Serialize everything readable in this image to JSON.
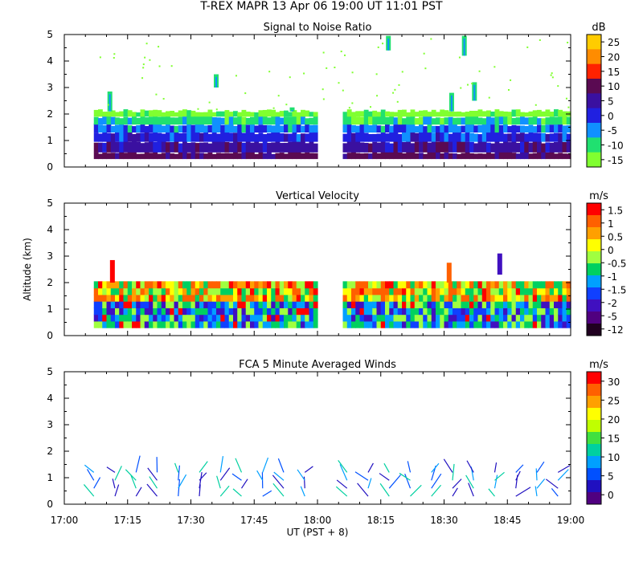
{
  "figure": {
    "title": "T-REX  MAPR 13 Apr 06  19:00 UT  11:01  PST",
    "xlabel": "UT  (PST + 8)",
    "ylabel": "Altitude (km)",
    "x_ticks": [
      "17:00",
      "17:15",
      "17:30",
      "17:45",
      "18:00",
      "18:15",
      "18:30",
      "18:45",
      "19:00"
    ],
    "y_ticks": [
      "0",
      "1",
      "2",
      "3",
      "4",
      "5"
    ]
  },
  "chart_data": [
    {
      "type": "heatmap",
      "title": "Signal to Noise Ratio",
      "xlabel": "UT  (PST + 8)",
      "ylabel": "",
      "xlim": [
        "17:00",
        "19:00"
      ],
      "ylim": [
        0,
        5
      ],
      "colorbar": {
        "unit": "dB",
        "labels": [
          "25",
          "20",
          "15",
          "10",
          "5",
          "0",
          "-5",
          "-10",
          "-15"
        ],
        "colors": [
          "#ffcc00",
          "#ff8c00",
          "#ff2200",
          "#5a0a52",
          "#3a10a0",
          "#2020e0",
          "#1090ff",
          "#20e070",
          "#80ff30"
        ]
      },
      "data_gaps": [
        [
          "17:00",
          "17:07"
        ],
        "18:00 to 18:06"
      ],
      "layers": [
        {
          "name": "",
          "bottom_km": 0.3,
          "top_km": 0.7,
          "level": "5 to 10 dB"
        },
        {
          "name": "",
          "bottom_km": 0.7,
          "top_km": 1.1,
          "level": "0 to 5 dB"
        },
        {
          "name": "",
          "bottom_km": 1.1,
          "top_km": 1.6,
          "level": "-5 to 0 dB"
        },
        {
          "name": "",
          "bottom_km": 1.6,
          "top_km": 2.1,
          "level": "-10 to -15 dB"
        }
      ]
    },
    {
      "type": "heatmap",
      "title": "Vertical Velocity",
      "xlabel": "UT  (PST + 8)",
      "ylabel": "Altitude (km)",
      "xlim": [
        "17:00",
        "19:00"
      ],
      "ylim": [
        0,
        5
      ],
      "colorbar": {
        "unit": "m/s",
        "labels": [
          "1.5",
          "1",
          "0.5",
          "0",
          "-0.5",
          "-1",
          "-1.5",
          "-2",
          "-5",
          "-12"
        ],
        "colors": [
          "#ff0000",
          "#ff6000",
          "#ffa000",
          "#ffff00",
          "#a0ff40",
          "#00d060",
          "#00a0ff",
          "#1040ff",
          "#4010c0",
          "#500080",
          "#200020"
        ]
      },
      "data_gaps": [
        [
          "17:00",
          "17:07"
        ],
        [
          "18:00",
          "18:06"
        ]
      ]
    },
    {
      "type": "scatter",
      "title": "FCA 5 Minute Averaged Winds",
      "xlabel": "UT  (PST + 8)",
      "ylabel": "",
      "xlim": [
        "17:00",
        "19:00"
      ],
      "ylim": [
        0,
        5
      ],
      "colorbar": {
        "unit": "m/s",
        "labels": [
          "30",
          "25",
          "20",
          "15",
          "10",
          "5",
          "0"
        ],
        "colors": [
          "#ff0000",
          "#ff6000",
          "#ffa000",
          "#ffff00",
          "#c0ff00",
          "#40e040",
          "#00d0a0",
          "#00a0ff",
          "#0050ff",
          "#2010c0",
          "#500080"
        ]
      },
      "profile_times": [
        "17:07",
        "17:12",
        "17:17",
        "17:22",
        "17:27",
        "17:32",
        "17:37",
        "17:42",
        "17:47",
        "17:52",
        "17:57",
        "18:07",
        "18:12",
        "18:17",
        "18:22",
        "18:27",
        "18:32",
        "18:37",
        "18:42",
        "18:47",
        "18:52",
        "18:57"
      ],
      "altitudes_km": [
        0.3,
        0.6,
        0.9,
        1.2
      ]
    }
  ]
}
